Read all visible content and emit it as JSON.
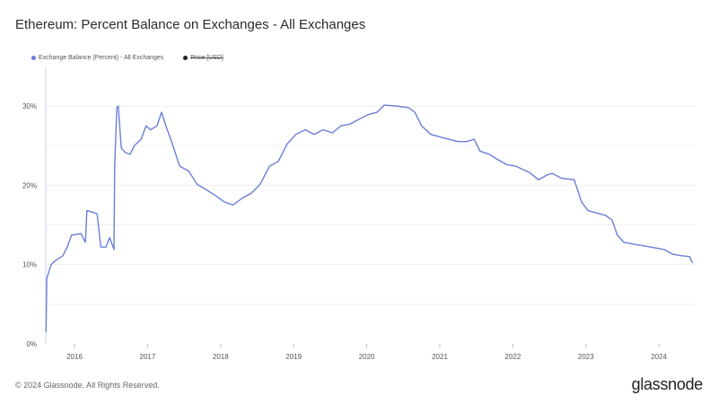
{
  "title": "Ethereum: Percent Balance on Exchanges - All Exchanges",
  "footer": "© 2024 Glassnode. All Rights Reserved.",
  "logo": "glassnode",
  "colors": {
    "series": "#6b7fd7",
    "price": "#222222",
    "grid": "#efefef"
  },
  "chart_data": {
    "type": "line",
    "title": "Ethereum: Percent Balance on Exchanges - All Exchanges",
    "xlabel": "",
    "ylabel": "",
    "xlim": [
      2015.6,
      2024.47
    ],
    "ylim": [
      0,
      34
    ],
    "grid": true,
    "legend_position": "top-left",
    "legend": [
      {
        "label": "Exchange Balance (Percent) - All Exchanges",
        "active": true
      },
      {
        "label": "Price [USD]",
        "active": false
      }
    ],
    "x_ticks": [
      "2016",
      "2017",
      "2018",
      "2019",
      "2020",
      "2021",
      "2022",
      "2023",
      "2024"
    ],
    "y_ticks": [
      "0%",
      "10%",
      "20%",
      "30%"
    ],
    "series": [
      {
        "name": "Exchange Balance (Percent) - All Exchanges",
        "x": [
          2015.61,
          2015.62,
          2015.64,
          2015.68,
          2015.74,
          2015.84,
          2015.9,
          2015.96,
          2016.09,
          2016.15,
          2016.17,
          2016.31,
          2016.36,
          2016.43,
          2016.48,
          2016.54,
          2016.55,
          2016.58,
          2016.6,
          2016.64,
          2016.7,
          2016.76,
          2016.82,
          2016.91,
          2016.98,
          2017.04,
          2017.13,
          2017.19,
          2017.25,
          2017.34,
          2017.44,
          2017.56,
          2017.68,
          2017.81,
          2017.93,
          2018.05,
          2018.17,
          2018.3,
          2018.42,
          2018.54,
          2018.67,
          2018.79,
          2018.91,
          2019.03,
          2019.16,
          2019.28,
          2019.4,
          2019.53,
          2019.65,
          2019.77,
          2019.89,
          2020.02,
          2020.14,
          2020.24,
          2020.39,
          2020.57,
          2020.66,
          2020.75,
          2020.88,
          2021.0,
          2021.12,
          2021.25,
          2021.37,
          2021.47,
          2021.55,
          2021.68,
          2021.8,
          2021.92,
          2022.04,
          2022.23,
          2022.35,
          2022.47,
          2022.54,
          2022.66,
          2022.84,
          2022.94,
          2023.03,
          2023.15,
          2023.27,
          2023.36,
          2023.43,
          2023.52,
          2023.7,
          2023.89,
          2024.07,
          2024.19,
          2024.32,
          2024.42,
          2024.46
        ],
        "values": [
          1.5,
          8.3,
          8.8,
          10.0,
          10.5,
          11.1,
          12.2,
          13.7,
          13.9,
          12.8,
          16.8,
          16.4,
          12.2,
          12.2,
          13.4,
          11.9,
          22.4,
          29.8,
          30.0,
          24.7,
          24.1,
          23.9,
          25.0,
          25.8,
          27.5,
          27.0,
          27.5,
          29.2,
          27.5,
          25.2,
          22.4,
          21.8,
          20.1,
          19.4,
          18.7,
          17.9,
          17.5,
          18.4,
          19.0,
          20.1,
          22.4,
          23.0,
          25.2,
          26.4,
          27.0,
          26.4,
          27.0,
          26.6,
          27.5,
          27.7,
          28.3,
          28.9,
          29.2,
          30.1,
          30.0,
          29.8,
          29.2,
          27.5,
          26.4,
          26.1,
          25.8,
          25.5,
          25.5,
          25.8,
          24.3,
          23.9,
          23.2,
          22.6,
          22.4,
          21.6,
          20.7,
          21.3,
          21.5,
          20.9,
          20.7,
          17.9,
          16.8,
          16.5,
          16.2,
          15.6,
          13.7,
          12.8,
          12.5,
          12.2,
          11.9,
          11.3,
          11.1,
          11.0,
          10.2
        ]
      }
    ]
  }
}
